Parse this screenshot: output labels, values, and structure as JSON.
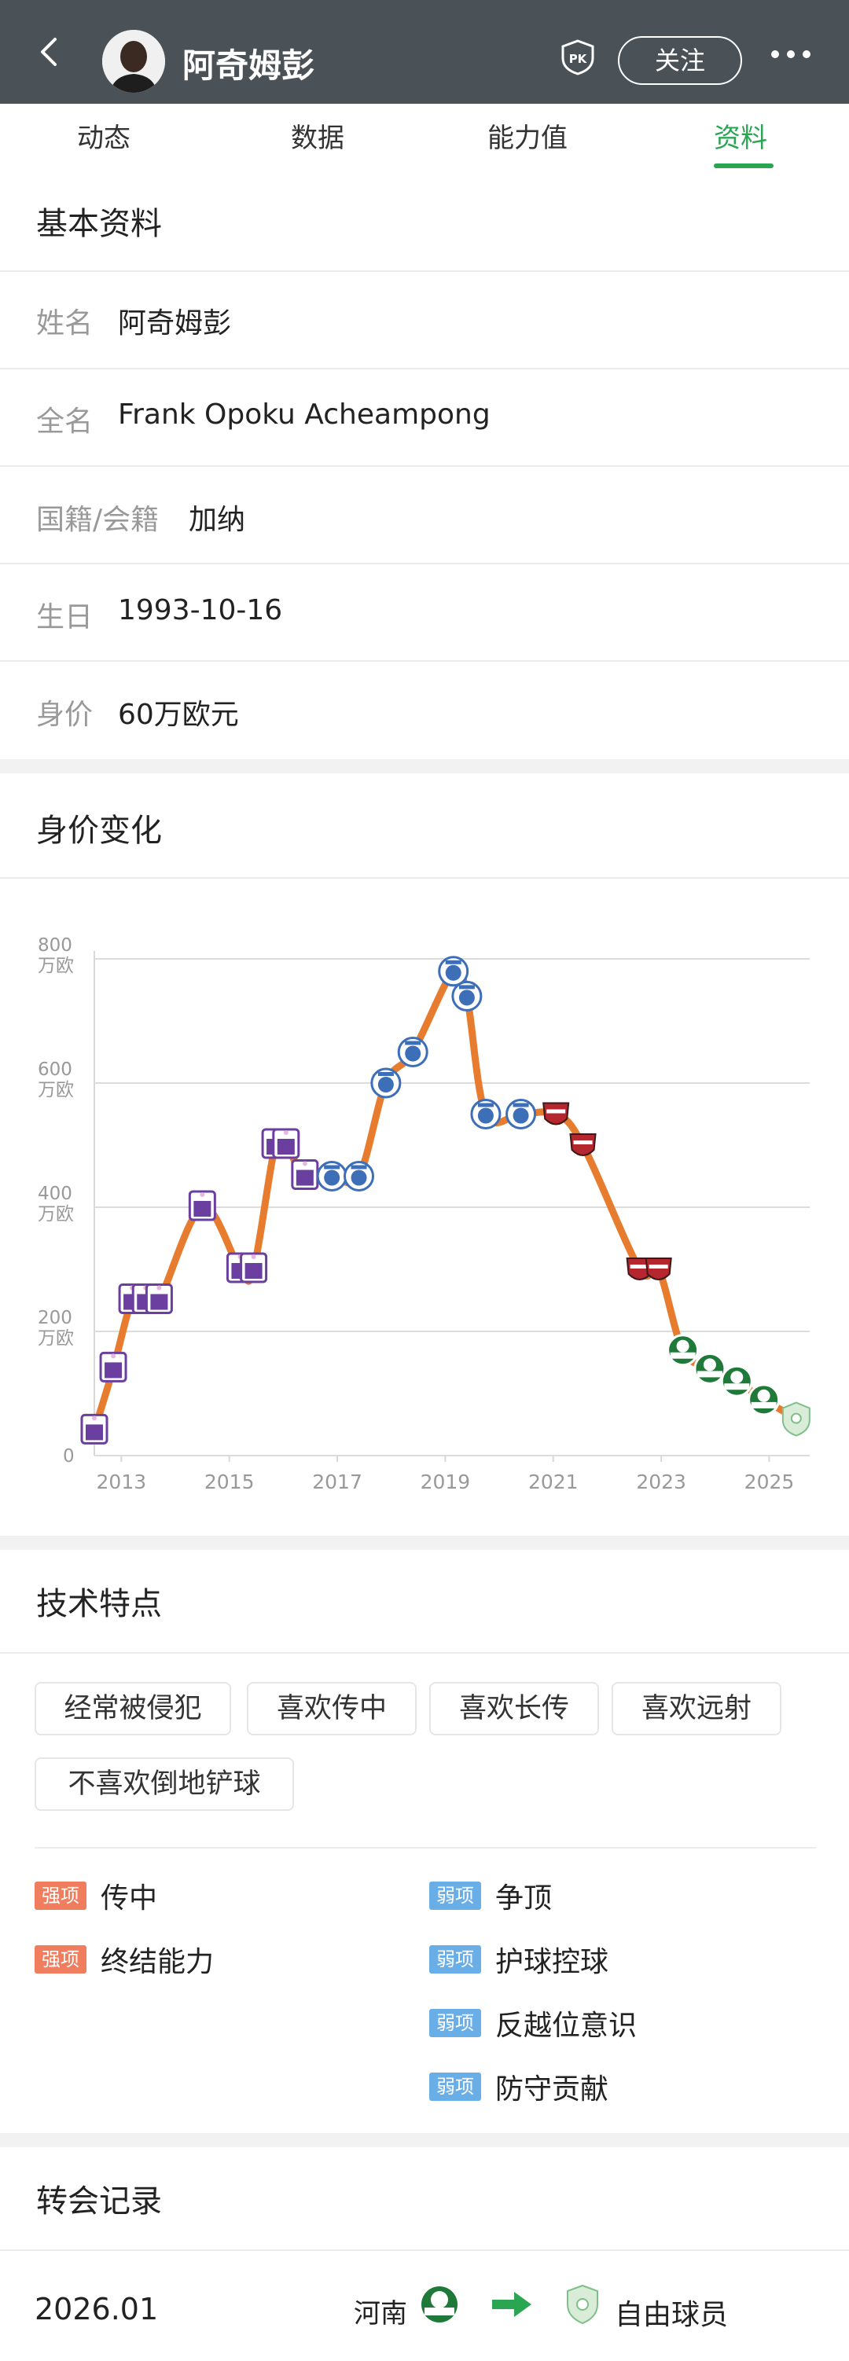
{
  "header": {
    "player_name": "阿奇姆彭",
    "follow_label": "关注",
    "pk_label": "PK"
  },
  "tabs": [
    {
      "label": "动态"
    },
    {
      "label": "数据"
    },
    {
      "label": "能力值"
    },
    {
      "label": "资料",
      "active": true
    }
  ],
  "basic_info": {
    "title": "基本资料",
    "rows": [
      {
        "label": "姓名",
        "value": "阿奇姆彭"
      },
      {
        "label": "全名",
        "value": "Frank Opoku Acheampong"
      },
      {
        "label": "国籍/会籍",
        "value": "加纳"
      },
      {
        "label": "生日",
        "value": "1993-10-16"
      },
      {
        "label": "身价",
        "value": "60万欧元"
      }
    ]
  },
  "value_chart": {
    "title": "身价变化"
  },
  "chart_data": {
    "type": "line",
    "title": "身价变化",
    "xlabel": "",
    "ylabel": "",
    "x_ticks": [
      "2013",
      "2015",
      "2017",
      "2019",
      "2021",
      "2023",
      "2025"
    ],
    "y_ticks": [
      {
        "value": 0,
        "label": "0"
      },
      {
        "value": 200,
        "label": "200",
        "unit": "万欧"
      },
      {
        "value": 400,
        "label": "400",
        "unit": "万欧"
      },
      {
        "value": 600,
        "label": "600",
        "unit": "万欧"
      },
      {
        "value": 800,
        "label": "800",
        "unit": "万欧"
      }
    ],
    "ylim": [
      0,
      800
    ],
    "xlim": [
      2012.5,
      2025.75
    ],
    "grid": true,
    "line_color": "#e87c2e",
    "points": [
      {
        "x": 2012.5,
        "y": 40,
        "club": "anderlecht"
      },
      {
        "x": 2012.85,
        "y": 140,
        "club": "anderlecht"
      },
      {
        "x": 2013.2,
        "y": 250,
        "club": "anderlecht"
      },
      {
        "x": 2013.45,
        "y": 250,
        "club": "anderlecht"
      },
      {
        "x": 2013.7,
        "y": 250,
        "club": "anderlecht"
      },
      {
        "x": 2014.5,
        "y": 400,
        "club": "anderlecht"
      },
      {
        "x": 2015.2,
        "y": 300,
        "club": "anderlecht"
      },
      {
        "x": 2015.45,
        "y": 300,
        "club": "anderlecht"
      },
      {
        "x": 2015.85,
        "y": 500,
        "club": "anderlecht"
      },
      {
        "x": 2016.05,
        "y": 500,
        "club": "anderlecht"
      },
      {
        "x": 2016.4,
        "y": 450,
        "club": "anderlecht"
      },
      {
        "x": 2016.9,
        "y": 450,
        "club": "tianjin"
      },
      {
        "x": 2017.4,
        "y": 450,
        "club": "tianjin"
      },
      {
        "x": 2017.9,
        "y": 600,
        "club": "tianjin"
      },
      {
        "x": 2018.4,
        "y": 650,
        "club": "tianjin"
      },
      {
        "x": 2019.15,
        "y": 780,
        "club": "tianjin"
      },
      {
        "x": 2019.4,
        "y": 740,
        "club": "tianjin"
      },
      {
        "x": 2019.75,
        "y": 550,
        "club": "tianjin"
      },
      {
        "x": 2020.4,
        "y": 550,
        "club": "tianjin"
      },
      {
        "x": 2021.05,
        "y": 550,
        "club": "shenzhen"
      },
      {
        "x": 2021.55,
        "y": 500,
        "club": "shenzhen"
      },
      {
        "x": 2022.6,
        "y": 300,
        "club": "shenzhen"
      },
      {
        "x": 2022.95,
        "y": 300,
        "club": "shenzhen"
      },
      {
        "x": 2023.4,
        "y": 170,
        "club": "henan"
      },
      {
        "x": 2023.9,
        "y": 140,
        "club": "henan"
      },
      {
        "x": 2024.4,
        "y": 120,
        "club": "henan"
      },
      {
        "x": 2024.9,
        "y": 90,
        "club": "henan"
      },
      {
        "x": 2025.5,
        "y": 60,
        "club": "free"
      }
    ]
  },
  "tech": {
    "title": "技术特点",
    "tags": [
      "经常被侵犯",
      "喜欢传中",
      "喜欢长传",
      "喜欢远射",
      "不喜欢倒地铲球"
    ],
    "strong_label": "强项",
    "weak_label": "弱项",
    "strengths": [
      "传中",
      "终结能力"
    ],
    "weaknesses": [
      "争顶",
      "护球控球",
      "反越位意识",
      "防守贡献"
    ]
  },
  "transfers": {
    "title": "转会记录",
    "rows": [
      {
        "date": "2026.01",
        "from": "河南",
        "to": "自由球员"
      }
    ]
  },
  "colors": {
    "accent": "#2aa653",
    "header_bg": "#4b5257",
    "strong": "#ef7d5e",
    "weak": "#6aaee8",
    "anderlecht": "#6a3fa0",
    "tianjin": "#3d6fb8",
    "shenzhen": "#b5262e",
    "henan": "#1f7a3a"
  }
}
